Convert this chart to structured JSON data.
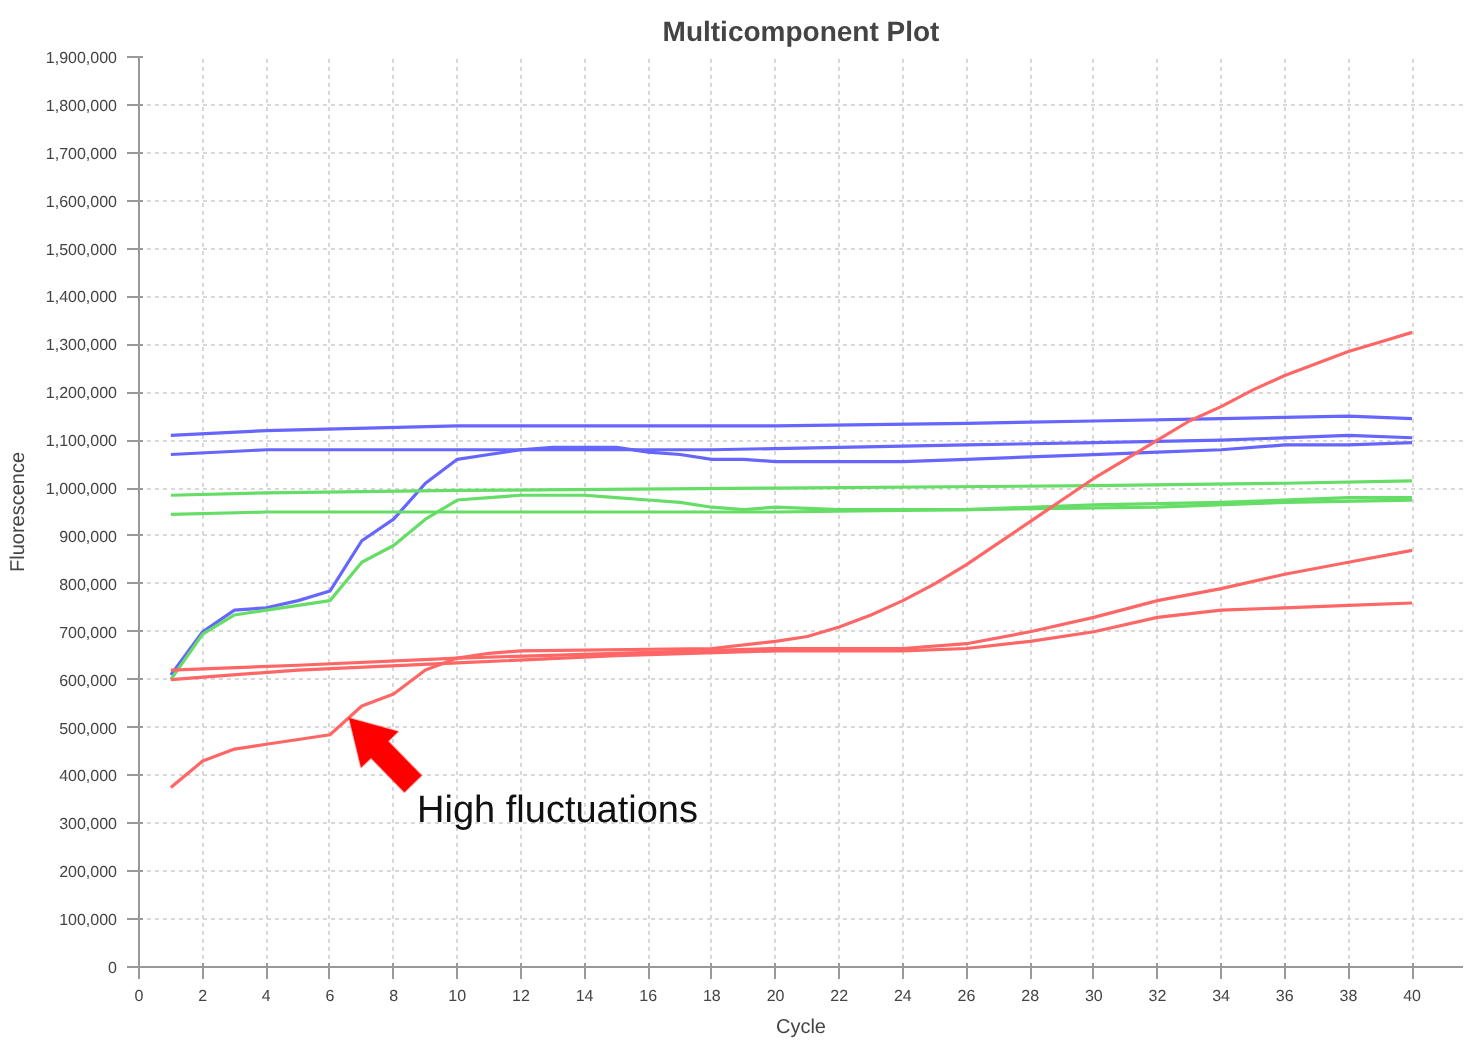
{
  "chart_data": {
    "type": "line",
    "title": "Multicomponent Plot",
    "xlabel": "Cycle",
    "ylabel": "Fluorescence",
    "xlim": [
      0,
      41.6
    ],
    "xticks": [
      0,
      2,
      4,
      6,
      8,
      10,
      12,
      14,
      16,
      18,
      20,
      22,
      24,
      26,
      28,
      30,
      32,
      34,
      36,
      38,
      40
    ],
    "ylim": [
      0,
      1900000
    ],
    "yticks": [
      {
        "value": 0,
        "label": "0"
      },
      {
        "value": 100000,
        "label": "100,000"
      },
      {
        "value": 200000,
        "label": "200,000"
      },
      {
        "value": 300000,
        "label": "300,000"
      },
      {
        "value": 400000,
        "label": "400,000"
      },
      {
        "value": 500000,
        "label": "500,000"
      },
      {
        "value": 600000,
        "label": "600,000"
      },
      {
        "value": 700000,
        "label": "700,000"
      },
      {
        "value": 800000,
        "label": "800,000"
      },
      {
        "value": 900000,
        "label": "900,000"
      },
      {
        "value": 1000000,
        "label": "1,000,000"
      },
      {
        "value": 1100000,
        "label": "1,100,000"
      },
      {
        "value": 1200000,
        "label": "1,200,000"
      },
      {
        "value": 1300000,
        "label": "1,300,000"
      },
      {
        "value": 1400000,
        "label": "1,400,000"
      },
      {
        "value": 1500000,
        "label": "1,500,000"
      },
      {
        "value": 1600000,
        "label": "1,600,000"
      },
      {
        "value": 1700000,
        "label": "1,700,000"
      },
      {
        "value": 1800000,
        "label": "1,800,000"
      },
      {
        "value": 1900000,
        "label": "1,900,000"
      }
    ],
    "grid": true,
    "marker": "none",
    "line_style": "solid",
    "series": [
      {
        "color": "#6666ff",
        "x": [
          1,
          4,
          10,
          14,
          20,
          26,
          30,
          34,
          38,
          40
        ],
        "values": [
          1110000,
          1120000,
          1130000,
          1130000,
          1130000,
          1135000,
          1140000,
          1145000,
          1150000,
          1145000
        ]
      },
      {
        "color": "#6666ff",
        "x": [
          1,
          4,
          10,
          18,
          22,
          26,
          30,
          34,
          38,
          40
        ],
        "values": [
          1070000,
          1080000,
          1080000,
          1080000,
          1085000,
          1090000,
          1095000,
          1100000,
          1110000,
          1105000
        ]
      },
      {
        "color": "#6666ff",
        "x": [
          1,
          2,
          3,
          4,
          5,
          6,
          7,
          8,
          9,
          10,
          11,
          12,
          13,
          14,
          15,
          16,
          17,
          18,
          19,
          20,
          24,
          26,
          28,
          30,
          32,
          34,
          36,
          38,
          40
        ],
        "values": [
          610000,
          700000,
          745000,
          750000,
          765000,
          785000,
          890000,
          935000,
          1010000,
          1060000,
          1070000,
          1080000,
          1085000,
          1085000,
          1085000,
          1075000,
          1070000,
          1060000,
          1060000,
          1055000,
          1055000,
          1060000,
          1065000,
          1070000,
          1075000,
          1080000,
          1090000,
          1090000,
          1095000
        ]
      },
      {
        "color": "#66dd66",
        "x": [
          1,
          4,
          10,
          20,
          30,
          36,
          40
        ],
        "values": [
          985000,
          990000,
          995000,
          1000000,
          1005000,
          1010000,
          1015000
        ]
      },
      {
        "color": "#66dd66",
        "x": [
          1,
          4,
          20,
          26,
          32,
          36,
          40
        ],
        "values": [
          945000,
          950000,
          950000,
          955000,
          960000,
          970000,
          975000
        ]
      },
      {
        "color": "#66dd66",
        "x": [
          1,
          2,
          3,
          4,
          5,
          6,
          7,
          8,
          9,
          10,
          11,
          12,
          13,
          14,
          15,
          16,
          17,
          18,
          19,
          20,
          22,
          26,
          30,
          34,
          38,
          40
        ],
        "values": [
          600000,
          695000,
          735000,
          745000,
          755000,
          765000,
          845000,
          880000,
          935000,
          975000,
          980000,
          985000,
          985000,
          985000,
          980000,
          975000,
          970000,
          960000,
          955000,
          960000,
          955000,
          955000,
          965000,
          970000,
          980000,
          980000
        ]
      },
      {
        "color": "#ff6666",
        "x": [
          1,
          2,
          3,
          4,
          5,
          6,
          7,
          8,
          9,
          10,
          11,
          12,
          18,
          20,
          21,
          22,
          23,
          24,
          25,
          26,
          27,
          28,
          29,
          30,
          31,
          32,
          33,
          34,
          35,
          36,
          37,
          38,
          39,
          40
        ],
        "values": [
          375000,
          430000,
          455000,
          465000,
          475000,
          485000,
          545000,
          570000,
          620000,
          645000,
          655000,
          660000,
          665000,
          680000,
          690000,
          710000,
          735000,
          765000,
          800000,
          840000,
          885000,
          930000,
          975000,
          1020000,
          1060000,
          1100000,
          1140000,
          1170000,
          1205000,
          1235000,
          1260000,
          1285000,
          1305000,
          1325000
        ]
      },
      {
        "color": "#ff6666",
        "x": [
          1,
          5,
          10,
          15,
          20,
          24,
          26,
          28,
          30,
          32,
          34,
          36,
          38,
          40
        ],
        "values": [
          620000,
          630000,
          645000,
          655000,
          665000,
          665000,
          675000,
          700000,
          730000,
          765000,
          790000,
          820000,
          845000,
          870000
        ]
      },
      {
        "color": "#ff6666",
        "x": [
          1,
          5,
          10,
          15,
          20,
          24,
          26,
          28,
          30,
          32,
          34,
          36,
          38,
          40
        ],
        "values": [
          600000,
          620000,
          635000,
          650000,
          660000,
          660000,
          665000,
          680000,
          700000,
          730000,
          745000,
          750000,
          755000,
          760000
        ]
      }
    ],
    "annotations": [
      {
        "text": "High fluctuations",
        "x": 6.6,
        "y": 520000
      }
    ]
  }
}
